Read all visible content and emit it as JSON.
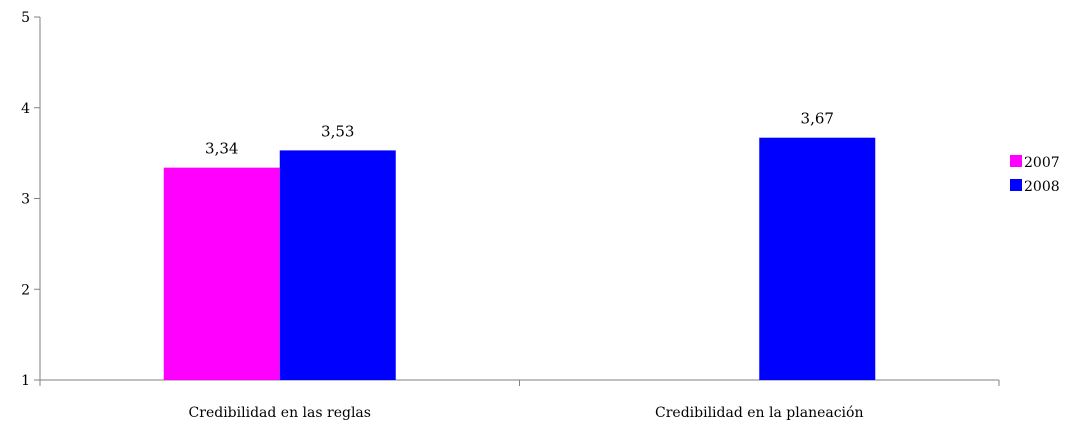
{
  "chart_data": {
    "type": "bar",
    "categories": [
      "Credibilidad en las reglas",
      "Credibilidad en la planeación"
    ],
    "series": [
      {
        "name": "2007",
        "values": [
          3.34,
          null
        ],
        "labels": [
          "3,34",
          ""
        ],
        "color": "#ff00ff"
      },
      {
        "name": "2008",
        "values": [
          3.53,
          3.67
        ],
        "labels": [
          "3,53",
          "3,67"
        ],
        "color": "#0000ff"
      }
    ],
    "ylim": [
      1,
      5
    ],
    "yticks": [
      1,
      2,
      3,
      4,
      5
    ],
    "ytick_labels": [
      "1",
      "2",
      "3",
      "4",
      "5"
    ],
    "grid": false,
    "legend": "right",
    "title": "",
    "xlabel": "",
    "ylabel": ""
  }
}
